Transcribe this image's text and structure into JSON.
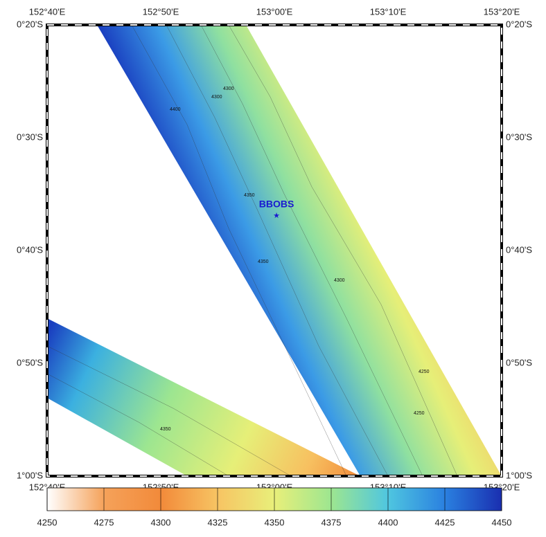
{
  "map": {
    "x_labels": [
      "152°40'E",
      "152°50'E",
      "153°00'E",
      "153°10'E",
      "153°20'E"
    ],
    "y_labels": [
      "0°20'S",
      "0°30'S",
      "0°40'S",
      "0°50'S",
      "1°00'S"
    ],
    "station": {
      "label": "BBOBS",
      "color": "#1a1ad0"
    },
    "contour_labels": [
      "4300",
      "4300",
      "4400",
      "4350",
      "4350",
      "4300",
      "4250",
      "4250",
      "4350"
    ]
  },
  "colorbar": {
    "ticks": [
      4250,
      4275,
      4300,
      4325,
      4350,
      4375,
      4400,
      4425,
      4450
    ],
    "colors": [
      "#ffffff",
      "#f5a25a",
      "#f28a3a",
      "#f7c463",
      "#e8ef7a",
      "#9de690",
      "#4fc6e0",
      "#2a80e0",
      "#1a2fb0"
    ]
  }
}
